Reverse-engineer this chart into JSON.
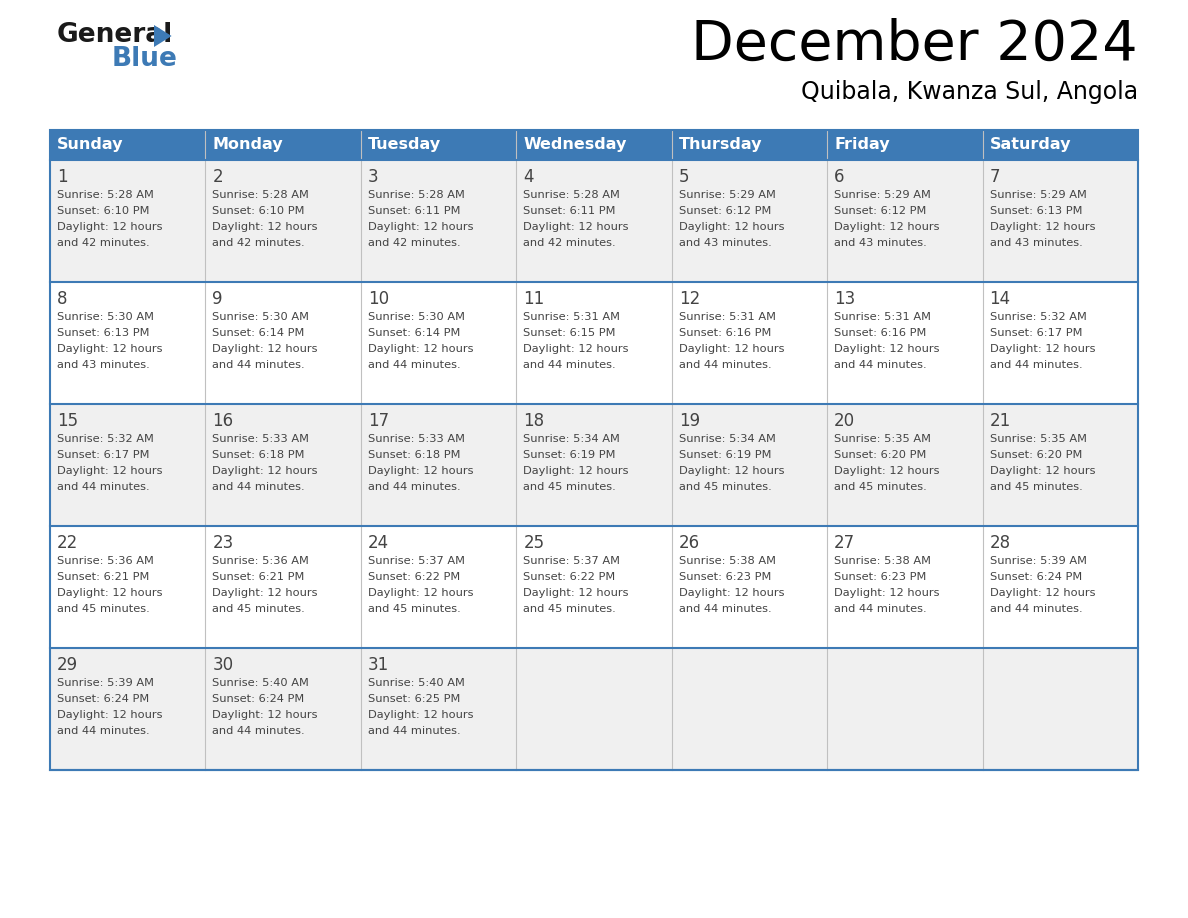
{
  "title": "December 2024",
  "subtitle": "Quibala, Kwanza Sul, Angola",
  "header_color": "#3d7ab5",
  "header_text_color": "#ffffff",
  "weekdays": [
    "Sunday",
    "Monday",
    "Tuesday",
    "Wednesday",
    "Thursday",
    "Friday",
    "Saturday"
  ],
  "row_bg_colors": [
    "#f0f0f0",
    "#ffffff"
  ],
  "border_color": "#3d7ab5",
  "cell_divider_color": "#c0c0c0",
  "text_color": "#444444",
  "days": [
    {
      "day": 1,
      "col": 0,
      "row": 0,
      "sunrise": "5:28 AM",
      "sunset": "6:10 PM",
      "daylight": "12 hours and 42 minutes."
    },
    {
      "day": 2,
      "col": 1,
      "row": 0,
      "sunrise": "5:28 AM",
      "sunset": "6:10 PM",
      "daylight": "12 hours and 42 minutes."
    },
    {
      "day": 3,
      "col": 2,
      "row": 0,
      "sunrise": "5:28 AM",
      "sunset": "6:11 PM",
      "daylight": "12 hours and 42 minutes."
    },
    {
      "day": 4,
      "col": 3,
      "row": 0,
      "sunrise": "5:28 AM",
      "sunset": "6:11 PM",
      "daylight": "12 hours and 42 minutes."
    },
    {
      "day": 5,
      "col": 4,
      "row": 0,
      "sunrise": "5:29 AM",
      "sunset": "6:12 PM",
      "daylight": "12 hours and 43 minutes."
    },
    {
      "day": 6,
      "col": 5,
      "row": 0,
      "sunrise": "5:29 AM",
      "sunset": "6:12 PM",
      "daylight": "12 hours and 43 minutes."
    },
    {
      "day": 7,
      "col": 6,
      "row": 0,
      "sunrise": "5:29 AM",
      "sunset": "6:13 PM",
      "daylight": "12 hours and 43 minutes."
    },
    {
      "day": 8,
      "col": 0,
      "row": 1,
      "sunrise": "5:30 AM",
      "sunset": "6:13 PM",
      "daylight": "12 hours and 43 minutes."
    },
    {
      "day": 9,
      "col": 1,
      "row": 1,
      "sunrise": "5:30 AM",
      "sunset": "6:14 PM",
      "daylight": "12 hours and 44 minutes."
    },
    {
      "day": 10,
      "col": 2,
      "row": 1,
      "sunrise": "5:30 AM",
      "sunset": "6:14 PM",
      "daylight": "12 hours and 44 minutes."
    },
    {
      "day": 11,
      "col": 3,
      "row": 1,
      "sunrise": "5:31 AM",
      "sunset": "6:15 PM",
      "daylight": "12 hours and 44 minutes."
    },
    {
      "day": 12,
      "col": 4,
      "row": 1,
      "sunrise": "5:31 AM",
      "sunset": "6:16 PM",
      "daylight": "12 hours and 44 minutes."
    },
    {
      "day": 13,
      "col": 5,
      "row": 1,
      "sunrise": "5:31 AM",
      "sunset": "6:16 PM",
      "daylight": "12 hours and 44 minutes."
    },
    {
      "day": 14,
      "col": 6,
      "row": 1,
      "sunrise": "5:32 AM",
      "sunset": "6:17 PM",
      "daylight": "12 hours and 44 minutes."
    },
    {
      "day": 15,
      "col": 0,
      "row": 2,
      "sunrise": "5:32 AM",
      "sunset": "6:17 PM",
      "daylight": "12 hours and 44 minutes."
    },
    {
      "day": 16,
      "col": 1,
      "row": 2,
      "sunrise": "5:33 AM",
      "sunset": "6:18 PM",
      "daylight": "12 hours and 44 minutes."
    },
    {
      "day": 17,
      "col": 2,
      "row": 2,
      "sunrise": "5:33 AM",
      "sunset": "6:18 PM",
      "daylight": "12 hours and 44 minutes."
    },
    {
      "day": 18,
      "col": 3,
      "row": 2,
      "sunrise": "5:34 AM",
      "sunset": "6:19 PM",
      "daylight": "12 hours and 45 minutes."
    },
    {
      "day": 19,
      "col": 4,
      "row": 2,
      "sunrise": "5:34 AM",
      "sunset": "6:19 PM",
      "daylight": "12 hours and 45 minutes."
    },
    {
      "day": 20,
      "col": 5,
      "row": 2,
      "sunrise": "5:35 AM",
      "sunset": "6:20 PM",
      "daylight": "12 hours and 45 minutes."
    },
    {
      "day": 21,
      "col": 6,
      "row": 2,
      "sunrise": "5:35 AM",
      "sunset": "6:20 PM",
      "daylight": "12 hours and 45 minutes."
    },
    {
      "day": 22,
      "col": 0,
      "row": 3,
      "sunrise": "5:36 AM",
      "sunset": "6:21 PM",
      "daylight": "12 hours and 45 minutes."
    },
    {
      "day": 23,
      "col": 1,
      "row": 3,
      "sunrise": "5:36 AM",
      "sunset": "6:21 PM",
      "daylight": "12 hours and 45 minutes."
    },
    {
      "day": 24,
      "col": 2,
      "row": 3,
      "sunrise": "5:37 AM",
      "sunset": "6:22 PM",
      "daylight": "12 hours and 45 minutes."
    },
    {
      "day": 25,
      "col": 3,
      "row": 3,
      "sunrise": "5:37 AM",
      "sunset": "6:22 PM",
      "daylight": "12 hours and 45 minutes."
    },
    {
      "day": 26,
      "col": 4,
      "row": 3,
      "sunrise": "5:38 AM",
      "sunset": "6:23 PM",
      "daylight": "12 hours and 44 minutes."
    },
    {
      "day": 27,
      "col": 5,
      "row": 3,
      "sunrise": "5:38 AM",
      "sunset": "6:23 PM",
      "daylight": "12 hours and 44 minutes."
    },
    {
      "day": 28,
      "col": 6,
      "row": 3,
      "sunrise": "5:39 AM",
      "sunset": "6:24 PM",
      "daylight": "12 hours and 44 minutes."
    },
    {
      "day": 29,
      "col": 0,
      "row": 4,
      "sunrise": "5:39 AM",
      "sunset": "6:24 PM",
      "daylight": "12 hours and 44 minutes."
    },
    {
      "day": 30,
      "col": 1,
      "row": 4,
      "sunrise": "5:40 AM",
      "sunset": "6:24 PM",
      "daylight": "12 hours and 44 minutes."
    },
    {
      "day": 31,
      "col": 2,
      "row": 4,
      "sunrise": "5:40 AM",
      "sunset": "6:25 PM",
      "daylight": "12 hours and 44 minutes."
    }
  ],
  "num_rows": 5,
  "num_cols": 7,
  "logo_general_color": "#1a1a1a",
  "logo_blue_color": "#3d7ab5",
  "logo_triangle_color": "#3d7ab5",
  "fig_width": 11.88,
  "fig_height": 9.18,
  "dpi": 100
}
